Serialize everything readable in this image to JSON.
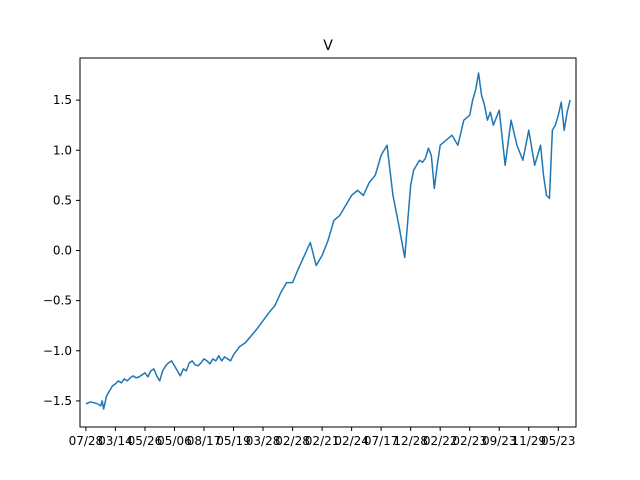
{
  "chart_data": {
    "type": "line",
    "title": "V",
    "xlabel": "",
    "ylabel": "",
    "grid": false,
    "ylim": [
      -1.76,
      1.92
    ],
    "xlim": [
      -0.2,
      16.6
    ],
    "x_tick_labels": [
      "07/28",
      "03/14",
      "05/26",
      "05/06",
      "08/17",
      "05/19",
      "03/28",
      "02/28",
      "02/21",
      "02/24",
      "07/17",
      "12/28",
      "02/22",
      "02/23",
      "09/23",
      "11/29",
      "05/23"
    ],
    "y_ticks": [
      -1.5,
      -1.0,
      -0.5,
      0.0,
      0.5,
      1.0,
      1.5
    ],
    "y_tick_labels": [
      "−1.5",
      "−1.0",
      "−0.5",
      "0.0",
      "0.5",
      "1.0",
      "1.5"
    ],
    "series": [
      {
        "color": "#1f77b4",
        "x": [
          0.0,
          0.15,
          0.3,
          0.4,
          0.5,
          0.55,
          0.6,
          0.7,
          0.8,
          0.9,
          1.0,
          1.1,
          1.2,
          1.3,
          1.4,
          1.5,
          1.6,
          1.7,
          1.8,
          1.9,
          2.0,
          2.1,
          2.2,
          2.3,
          2.4,
          2.5,
          2.6,
          2.7,
          2.8,
          2.9,
          3.0,
          3.1,
          3.2,
          3.3,
          3.4,
          3.5,
          3.6,
          3.7,
          3.8,
          3.9,
          4.0,
          4.1,
          4.2,
          4.3,
          4.4,
          4.5,
          4.6,
          4.7,
          4.8,
          4.9,
          5.0,
          5.2,
          5.4,
          5.6,
          5.8,
          6.0,
          6.2,
          6.4,
          6.6,
          6.8,
          7.0,
          7.2,
          7.4,
          7.6,
          7.8,
          8.0,
          8.2,
          8.4,
          8.6,
          8.8,
          9.0,
          9.2,
          9.4,
          9.6,
          9.8,
          10.0,
          10.2,
          10.4,
          10.6,
          10.8,
          11.0,
          11.1,
          11.2,
          11.3,
          11.4,
          11.5,
          11.6,
          11.7,
          11.8,
          11.9,
          12.0,
          12.2,
          12.4,
          12.6,
          12.8,
          13.0,
          13.1,
          13.2,
          13.3,
          13.4,
          13.5,
          13.6,
          13.7,
          13.8,
          14.0,
          14.2,
          14.4,
          14.6,
          14.8,
          15.0,
          15.2,
          15.4,
          15.5,
          15.6,
          15.7,
          15.8,
          15.9,
          16.0,
          16.1,
          16.2,
          16.3,
          16.4
        ],
        "y": [
          -1.53,
          -1.51,
          -1.52,
          -1.53,
          -1.55,
          -1.5,
          -1.58,
          -1.45,
          -1.4,
          -1.35,
          -1.33,
          -1.3,
          -1.32,
          -1.28,
          -1.3,
          -1.27,
          -1.25,
          -1.27,
          -1.26,
          -1.24,
          -1.22,
          -1.26,
          -1.2,
          -1.18,
          -1.25,
          -1.3,
          -1.2,
          -1.15,
          -1.12,
          -1.1,
          -1.15,
          -1.2,
          -1.25,
          -1.18,
          -1.2,
          -1.12,
          -1.1,
          -1.14,
          -1.15,
          -1.12,
          -1.08,
          -1.1,
          -1.13,
          -1.08,
          -1.1,
          -1.05,
          -1.1,
          -1.06,
          -1.08,
          -1.1,
          -1.04,
          -0.96,
          -0.92,
          -0.85,
          -0.78,
          -0.7,
          -0.62,
          -0.55,
          -0.42,
          -0.32,
          -0.32,
          -0.18,
          -0.05,
          0.08,
          -0.15,
          -0.05,
          0.1,
          0.3,
          0.35,
          0.45,
          0.55,
          0.6,
          0.55,
          0.68,
          0.75,
          0.95,
          1.05,
          0.55,
          0.25,
          -0.07,
          0.65,
          0.8,
          0.85,
          0.9,
          0.88,
          0.92,
          1.02,
          0.95,
          0.62,
          0.85,
          1.05,
          1.1,
          1.15,
          1.05,
          1.3,
          1.35,
          1.5,
          1.6,
          1.77,
          1.55,
          1.45,
          1.3,
          1.38,
          1.25,
          1.4,
          0.85,
          1.3,
          1.05,
          0.9,
          1.2,
          0.85,
          1.05,
          0.75,
          0.55,
          0.52,
          1.2,
          1.25,
          1.35,
          1.48,
          1.2,
          1.38,
          1.5
        ]
      }
    ]
  }
}
